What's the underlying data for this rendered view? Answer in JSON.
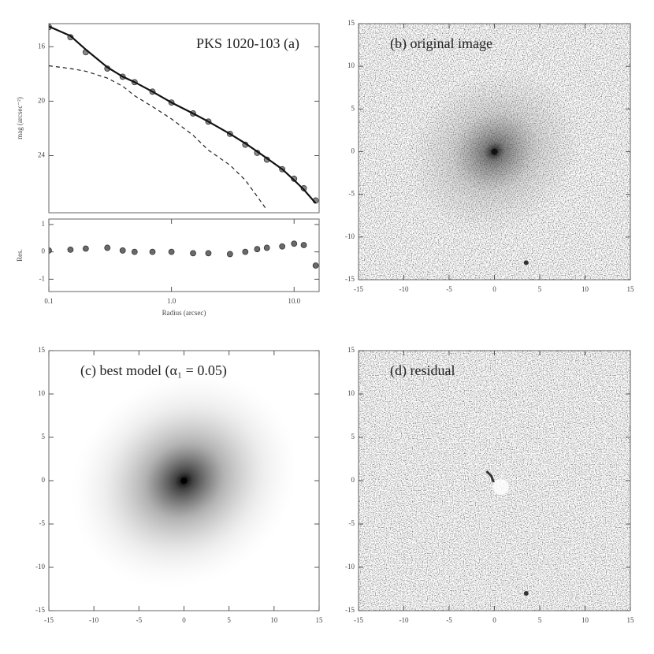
{
  "chart_data": [
    {
      "type": "line",
      "title": "PKS 1020-103 (a)",
      "y_label": "mag (arcsec⁻²)",
      "x_scale": "log",
      "x": [
        0.1,
        0.15,
        0.2,
        0.3,
        0.4,
        0.5,
        0.7,
        1,
        1.5,
        2,
        3,
        4,
        5,
        6,
        8,
        10,
        12,
        15
      ],
      "series": [
        {
          "color": "#8a8a8a",
          "marker": "circle",
          "values": [
            14.55,
            15.3,
            16.4,
            17.6,
            18.2,
            18.6,
            19.3,
            20.1,
            20.9,
            21.5,
            22.4,
            23.2,
            23.8,
            24.3,
            25.0,
            25.7,
            26.4,
            27.3
          ]
        },
        {
          "color": "#111111",
          "line": "solid",
          "values": [
            14.5,
            15.2,
            16.2,
            17.5,
            18.2,
            18.6,
            19.3,
            20.1,
            20.9,
            21.5,
            22.4,
            23.1,
            23.7,
            24.2,
            25.0,
            25.8,
            26.5,
            27.5
          ]
        },
        {
          "color": "#222222",
          "line": "dashed",
          "values": [
            17.4,
            17.6,
            17.8,
            18.3,
            18.9,
            19.6,
            20.4,
            21.3,
            22.5,
            23.6,
            24.7,
            25.8,
            27.0,
            28.0,
            null,
            null,
            null,
            null
          ]
        }
      ],
      "xlim": [
        0.1,
        16
      ],
      "ylim": [
        28.2,
        14.3
      ],
      "yticks": [
        16,
        20,
        24
      ]
    },
    {
      "type": "line",
      "x_label": "Radius (arcsec)",
      "y_label": "Res.",
      "x_scale": "log",
      "x": [
        0.1,
        0.15,
        0.2,
        0.3,
        0.4,
        0.5,
        0.7,
        1,
        1.5,
        2,
        3,
        4,
        5,
        6,
        8,
        10,
        12,
        15
      ],
      "series": [
        {
          "color": "#6a6a6a",
          "marker": "circle",
          "values": [
            0.05,
            0.08,
            0.12,
            0.15,
            0.05,
            0.0,
            0.0,
            0.0,
            -0.05,
            -0.05,
            -0.08,
            0.0,
            0.1,
            0.15,
            0.2,
            0.3,
            0.25,
            -0.5
          ]
        }
      ],
      "xlim": [
        0.1,
        16
      ],
      "ylim": [
        -1.45,
        1.2
      ],
      "xticks": [
        0.1,
        {
          "value": 1,
          "label": "1.0"
        },
        {
          "value": 10,
          "label": "10.0"
        }
      ],
      "yticks": [
        1,
        0,
        -1
      ]
    },
    {
      "type": "image",
      "title": "(b) original image",
      "xlim": [
        -15,
        15
      ],
      "ylim": [
        -15,
        15
      ],
      "xticks": [
        -15,
        -10,
        -5,
        0,
        5,
        10,
        15
      ],
      "yticks": [
        -15,
        -10,
        -5,
        0,
        5,
        10,
        15
      ]
    },
    {
      "type": "image",
      "title": "(c) best model (α₁ = 0.05)",
      "xlim": [
        -15,
        15
      ],
      "ylim": [
        -15,
        15
      ],
      "xticks": [
        -15,
        -10,
        -5,
        0,
        5,
        10,
        15
      ],
      "yticks": [
        -15,
        -10,
        -5,
        0,
        5,
        10,
        15
      ]
    },
    {
      "type": "image",
      "title": "(d) residual",
      "xlim": [
        -15,
        15
      ],
      "ylim": [
        -15,
        15
      ],
      "xticks": [
        -15,
        -10,
        -5,
        0,
        5,
        10,
        15
      ],
      "yticks": [
        -15,
        -10,
        -5,
        0,
        5,
        10,
        15
      ]
    }
  ]
}
